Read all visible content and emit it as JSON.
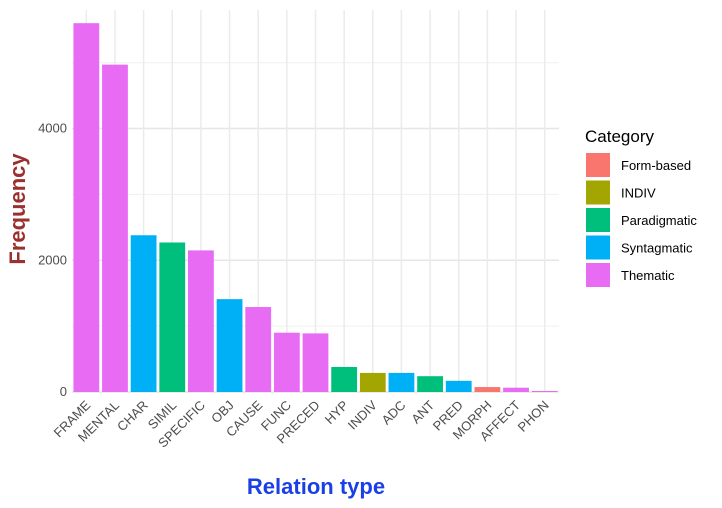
{
  "chart_data": {
    "type": "bar",
    "xlabel": "Relation type",
    "ylabel": "Frequency",
    "xlabel_color": "#1a3fe6",
    "ylabel_color": "#9b3030",
    "ylim": [
      0,
      5800
    ],
    "yticks": [
      0,
      2000,
      4000
    ],
    "grid": true,
    "legend": {
      "title": "Category",
      "position": "right",
      "entries": [
        {
          "label": "Form-based",
          "color": "#F8766D"
        },
        {
          "label": "INDIV",
          "color": "#A3A500"
        },
        {
          "label": "Paradigmatic",
          "color": "#00BF7D"
        },
        {
          "label": "Syntagmatic",
          "color": "#00B0F6"
        },
        {
          "label": "Thematic",
          "color": "#E76BF3"
        }
      ]
    },
    "bars": [
      {
        "category": "FRAME",
        "value": 5600,
        "group": "Thematic"
      },
      {
        "category": "MENTAL",
        "value": 4970,
        "group": "Thematic"
      },
      {
        "category": "CHAR",
        "value": 2380,
        "group": "Syntagmatic"
      },
      {
        "category": "SIMIL",
        "value": 2270,
        "group": "Paradigmatic"
      },
      {
        "category": "SPECIFIC",
        "value": 2150,
        "group": "Thematic"
      },
      {
        "category": "OBJ",
        "value": 1410,
        "group": "Syntagmatic"
      },
      {
        "category": "CAUSE",
        "value": 1290,
        "group": "Thematic"
      },
      {
        "category": "FUNC",
        "value": 900,
        "group": "Thematic"
      },
      {
        "category": "PRECED",
        "value": 890,
        "group": "Thematic"
      },
      {
        "category": "HYP",
        "value": 380,
        "group": "Paradigmatic"
      },
      {
        "category": "INDIV",
        "value": 290,
        "group": "INDIV"
      },
      {
        "category": "ADC",
        "value": 290,
        "group": "Syntagmatic"
      },
      {
        "category": "ANT",
        "value": 240,
        "group": "Paradigmatic"
      },
      {
        "category": "PRED",
        "value": 170,
        "group": "Syntagmatic"
      },
      {
        "category": "MORPH",
        "value": 75,
        "group": "Form-based"
      },
      {
        "category": "AFFECT",
        "value": 65,
        "group": "Thematic"
      },
      {
        "category": "PHON",
        "value": 15,
        "group": "Thematic"
      }
    ]
  }
}
